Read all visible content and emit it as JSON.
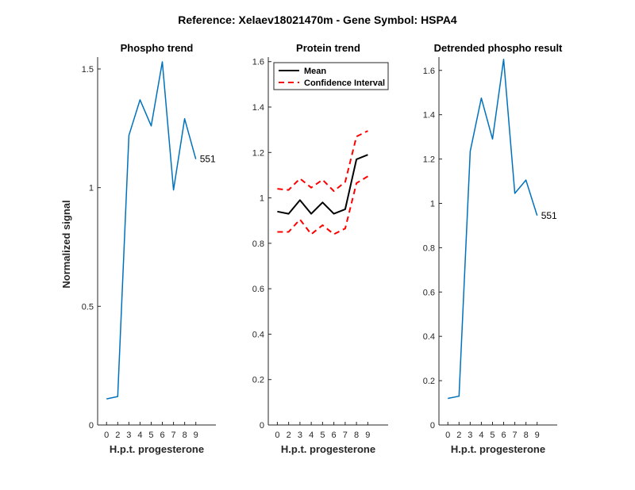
{
  "figure": {
    "suptitle": "Reference:  Xelaev18021470m - Gene Symbol:  HSPA4"
  },
  "colors": {
    "phospho": "#0072BD",
    "mean": "#000000",
    "ci": "#FF0000",
    "axis": "#262626"
  },
  "chart_data": [
    {
      "id": "phospho",
      "type": "line",
      "title": "Phospho trend",
      "xlabel": "H.p.t. progesterone",
      "ylabel": "Normalized signal",
      "categories": [
        "0",
        "2",
        "3",
        "4",
        "5",
        "6",
        "7",
        "8",
        "9"
      ],
      "xlim": [
        -0.8,
        9.8
      ],
      "ylim": [
        0,
        1.55
      ],
      "yticks": [
        0,
        0.5,
        1,
        1.5
      ],
      "ytick_labels": [
        "0",
        "0.5",
        "1",
        "1.5"
      ],
      "series": [
        {
          "name": "Phospho",
          "color_key": "phospho",
          "dash": false,
          "values": [
            0.11,
            0.12,
            1.22,
            1.37,
            1.26,
            1.53,
            0.99,
            1.29,
            1.12
          ]
        }
      ],
      "end_label": "551"
    },
    {
      "id": "protein",
      "type": "line",
      "title": "Protein trend",
      "xlabel": "H.p.t. progesterone",
      "ylabel": "",
      "categories": [
        "0",
        "2",
        "3",
        "4",
        "5",
        "6",
        "7",
        "8",
        "9"
      ],
      "xlim": [
        -0.8,
        9.8
      ],
      "ylim": [
        0,
        1.62
      ],
      "yticks": [
        0,
        0.2,
        0.4,
        0.6,
        0.8,
        1.0,
        1.2,
        1.4,
        1.6
      ],
      "ytick_labels": [
        "0",
        "0.2",
        "0.4",
        "0.6",
        "0.8",
        "1",
        "1.2",
        "1.4",
        "1.6"
      ],
      "series": [
        {
          "name": "Mean",
          "color_key": "mean",
          "dash": false,
          "values": [
            0.94,
            0.93,
            0.99,
            0.93,
            0.98,
            0.93,
            0.95,
            1.17,
            1.19
          ]
        },
        {
          "name": "Confidence Interval",
          "color_key": "ci",
          "dash": true,
          "values": [
            1.04,
            1.035,
            1.085,
            1.045,
            1.08,
            1.03,
            1.07,
            1.27,
            1.295
          ]
        },
        {
          "name": "Confidence Interval lower",
          "color_key": "ci",
          "dash": true,
          "values": [
            0.85,
            0.85,
            0.905,
            0.84,
            0.88,
            0.84,
            0.865,
            1.065,
            1.095
          ]
        }
      ],
      "legend": {
        "position": "top-left",
        "entries": [
          {
            "label": "Mean",
            "color_key": "mean",
            "dash": false
          },
          {
            "label": "Confidence Interval",
            "color_key": "ci",
            "dash": true
          }
        ]
      }
    },
    {
      "id": "detrended",
      "type": "line",
      "title": "Detrended phospho result",
      "xlabel": "H.p.t. progesterone",
      "ylabel": "",
      "categories": [
        "0",
        "2",
        "3",
        "4",
        "5",
        "6",
        "7",
        "8",
        "9"
      ],
      "xlim": [
        -0.8,
        9.8
      ],
      "ylim": [
        0,
        1.66
      ],
      "yticks": [
        0,
        0.2,
        0.4,
        0.6,
        0.8,
        1.0,
        1.2,
        1.4,
        1.6
      ],
      "ytick_labels": [
        "0",
        "0.2",
        "0.4",
        "0.6",
        "0.8",
        "1",
        "1.2",
        "1.4",
        "1.6"
      ],
      "series": [
        {
          "name": "Detrended",
          "color_key": "phospho",
          "dash": false,
          "values": [
            0.12,
            0.13,
            1.235,
            1.475,
            1.29,
            1.65,
            1.045,
            1.105,
            0.945
          ]
        }
      ],
      "end_label": "551"
    }
  ]
}
